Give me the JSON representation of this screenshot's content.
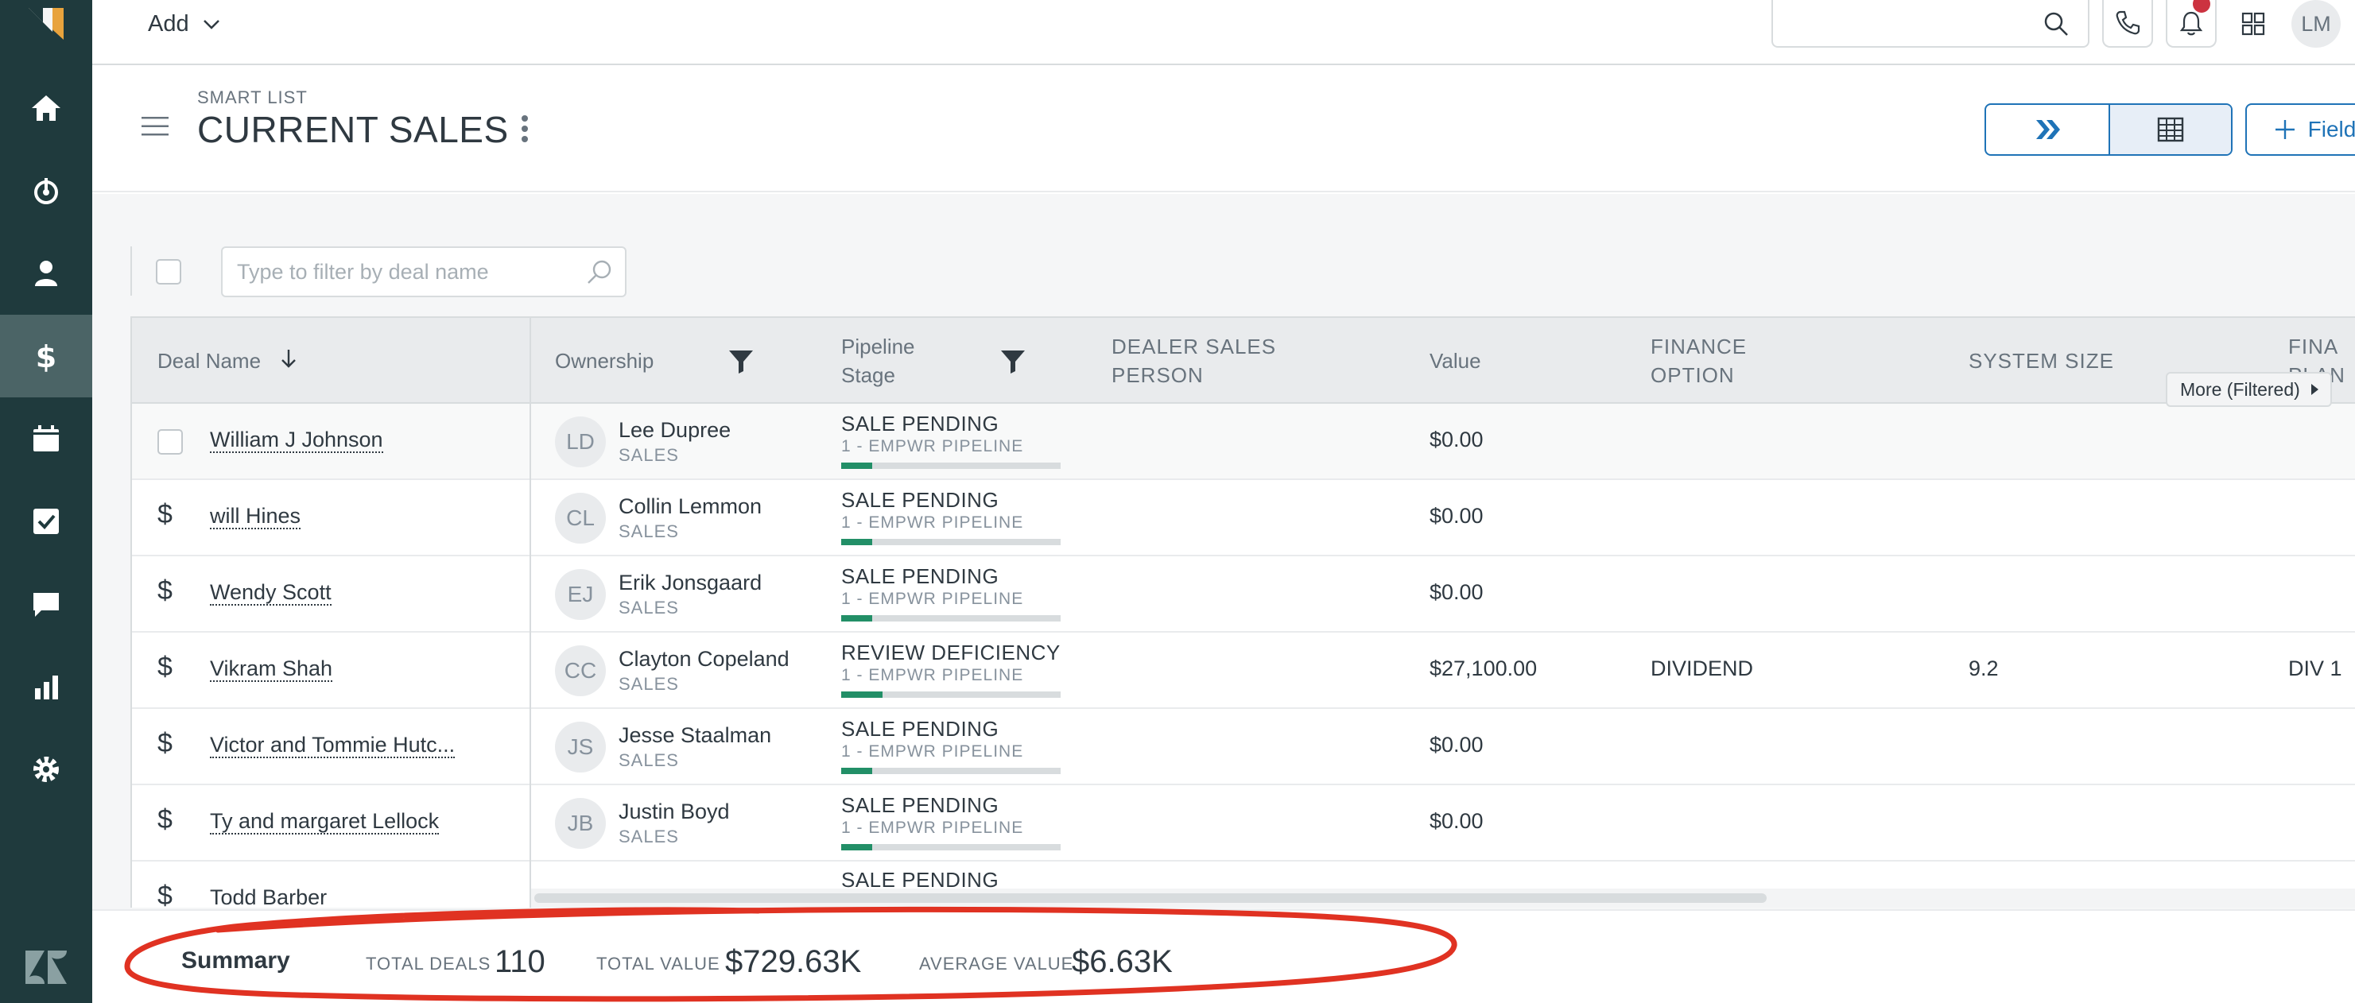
{
  "topbar": {
    "add_label": "Add",
    "avatar_initials": "LM"
  },
  "page": {
    "smart_list_label": "SMART LIST",
    "title": "CURRENT SALES",
    "field_button_label": "Field"
  },
  "filter": {
    "placeholder": "Type to filter by deal name"
  },
  "table": {
    "headers": {
      "deal_name": "Deal Name",
      "ownership": "Ownership",
      "pipeline_stage_1": "Pipeline",
      "pipeline_stage_2": "Stage",
      "dealer_1": "DEALER SALES",
      "dealer_2": "PERSON",
      "value": "Value",
      "finance_1": "FINANCE",
      "finance_2": "OPTION",
      "system_size": "SYSTEM SIZE",
      "fina_1": "FINA",
      "fina_2": "PLAN"
    },
    "more_filtered": "More (Filtered)",
    "rows": [
      {
        "deal": "William J Johnson",
        "initials": "LD",
        "owner": "Lee Dupree",
        "role": "SALES",
        "stage": "SALE PENDING",
        "pipeline": "1 - EMPWR PIPELINE",
        "progress": 0.14,
        "value": "$0.00",
        "finance": "",
        "size": "",
        "plan": ""
      },
      {
        "deal": "will Hines",
        "initials": "CL",
        "owner": "Collin Lemmon",
        "role": "SALES",
        "stage": "SALE PENDING",
        "pipeline": "1 - EMPWR PIPELINE",
        "progress": 0.14,
        "value": "$0.00",
        "finance": "",
        "size": "",
        "plan": ""
      },
      {
        "deal": "Wendy Scott",
        "initials": "EJ",
        "owner": "Erik Jonsgaard",
        "role": "SALES",
        "stage": "SALE PENDING",
        "pipeline": "1 - EMPWR PIPELINE",
        "progress": 0.14,
        "value": "$0.00",
        "finance": "",
        "size": "",
        "plan": ""
      },
      {
        "deal": "Vikram Shah",
        "initials": "CC",
        "owner": "Clayton Copeland",
        "role": "SALES",
        "stage": "REVIEW DEFICIENCY",
        "pipeline": "1 - EMPWR PIPELINE",
        "progress": 0.19,
        "value": "$27,100.00",
        "finance": "DIVIDEND",
        "size": "9.2",
        "plan": "DIV 1"
      },
      {
        "deal": "Victor and Tommie Hutc...",
        "initials": "JS",
        "owner": "Jesse Staalman",
        "role": "SALES",
        "stage": "SALE PENDING",
        "pipeline": "1 - EMPWR PIPELINE",
        "progress": 0.14,
        "value": "$0.00",
        "finance": "",
        "size": "",
        "plan": ""
      },
      {
        "deal": "Ty and margaret Lellock",
        "initials": "JB",
        "owner": "Justin Boyd",
        "role": "SALES",
        "stage": "SALE PENDING",
        "pipeline": "1 - EMPWR PIPELINE",
        "progress": 0.14,
        "value": "$0.00",
        "finance": "",
        "size": "",
        "plan": ""
      },
      {
        "deal": "Todd Barber",
        "initials": "",
        "owner": "",
        "role": "",
        "stage": "SALE PENDING",
        "pipeline": "",
        "progress": 0,
        "value": "",
        "finance": "",
        "size": "",
        "plan": ""
      }
    ]
  },
  "summary": {
    "title": "Summary",
    "total_deals_label": "TOTAL DEALS",
    "total_deals": "110",
    "total_value_label": "TOTAL VALUE",
    "total_value": "$729.63K",
    "average_value_label": "AVERAGE VALUE",
    "average_value": "$6.63K"
  },
  "colors": {
    "nav_bg": "#1f3a3d",
    "accent": "#1f73b7",
    "progress": "#228f67",
    "notification": "#cc3340",
    "annotation": "#e03222"
  },
  "icons": [
    "logo-icon",
    "home-icon",
    "leads-icon",
    "contacts-icon",
    "deals-icon",
    "calendar-icon",
    "tasks-icon",
    "messages-icon",
    "reports-icon",
    "settings-icon",
    "zendesk-icon",
    "search-icon",
    "phone-icon",
    "bell-icon",
    "apps-grid-icon",
    "chevron-down-icon",
    "hamburger-icon",
    "kebab-icon",
    "pipeline-view-icon",
    "table-view-icon",
    "plus-icon",
    "filter-funnel-icon",
    "sort-down-icon",
    "caret-right-icon"
  ]
}
